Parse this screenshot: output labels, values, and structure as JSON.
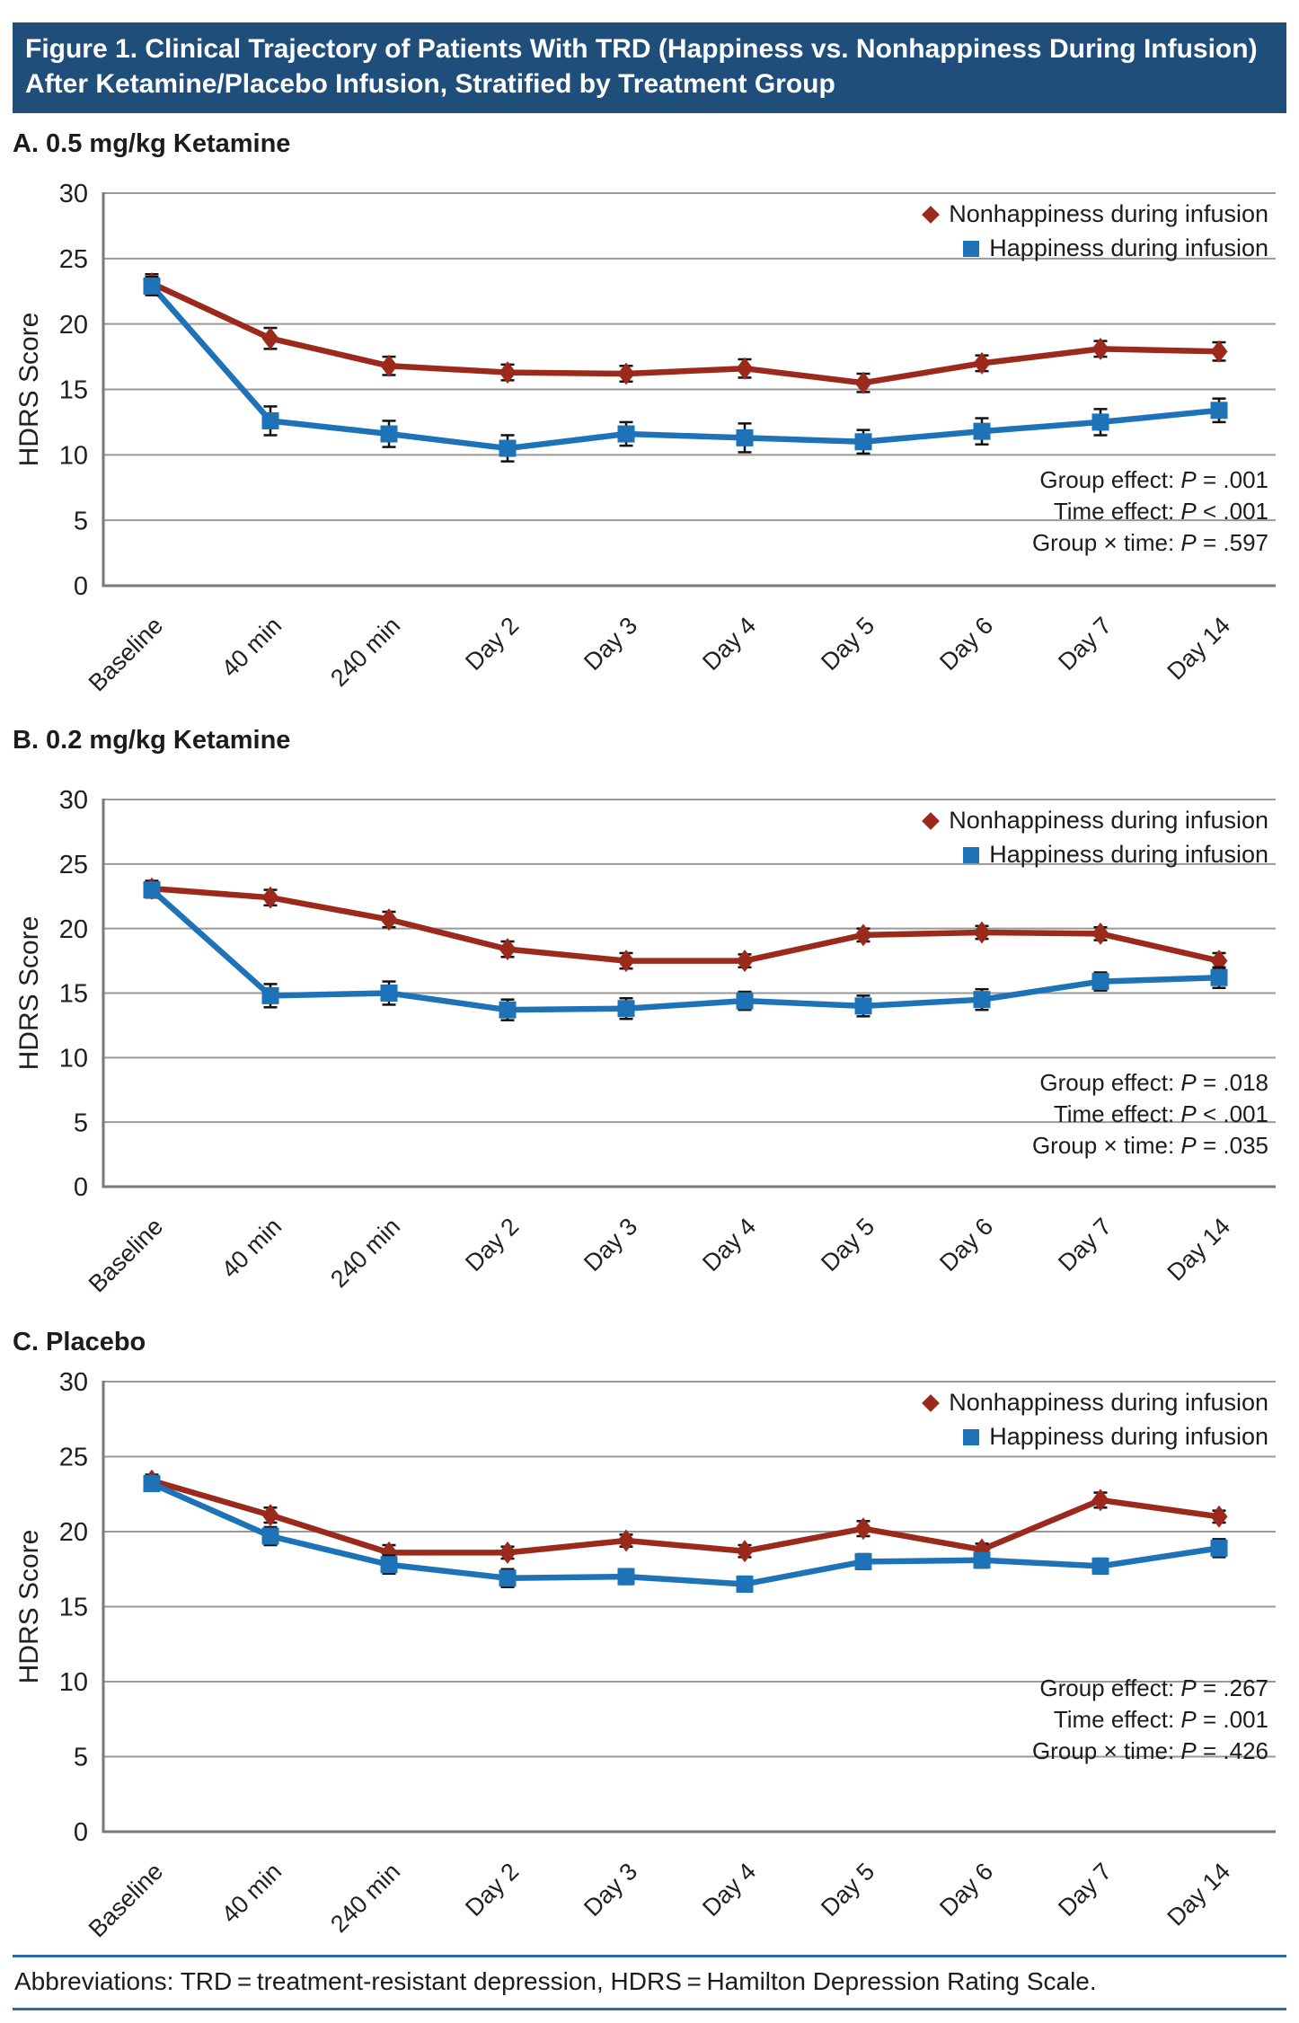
{
  "banner": {
    "title": "Figure 1. Clinical Trajectory of Patients With TRD (Happiness vs. Nonhappiness During Infusion) After Ketamine/Placebo Infusion, Stratified by Treatment Group"
  },
  "footer": {
    "text": "Abbreviations: TRD = treatment-resistant depression, HDRS = Hamilton Depression Rating Scale."
  },
  "colors": {
    "banner_bg": "#1e4e79",
    "nonhappiness": "#9c2a1c",
    "happiness": "#1d72b8",
    "gridline": "#999999",
    "axis": "#7a7a7a",
    "error_bar": "#111111",
    "text": "#231f20",
    "footer_rule": "#2d6ca2"
  },
  "chart_data": [
    {
      "type": "line",
      "panel": "A",
      "title": "A. 0.5 mg/kg Ketamine",
      "ylabel": "HDRS Score",
      "ylim": [
        0,
        30
      ],
      "yticks": [
        0,
        5,
        10,
        15,
        20,
        25,
        30
      ],
      "grid": true,
      "legend_position": "top-right",
      "categories": [
        "Baseline",
        "40 min",
        "240 min",
        "Day 2",
        "Day 3",
        "Day 4",
        "Day 5",
        "Day 6",
        "Day 7",
        "Day 14"
      ],
      "series": [
        {
          "name": "Nonhappiness during infusion",
          "marker": "diamond",
          "color": "#9c2a1c",
          "values": [
            23.1,
            18.9,
            16.8,
            16.3,
            16.2,
            16.6,
            15.5,
            17.0,
            18.1,
            17.9
          ],
          "errors": [
            0.7,
            0.8,
            0.7,
            0.6,
            0.6,
            0.7,
            0.7,
            0.6,
            0.6,
            0.7
          ]
        },
        {
          "name": "Happiness during infusion",
          "marker": "square",
          "color": "#1d72b8",
          "values": [
            22.9,
            12.6,
            11.6,
            10.5,
            11.6,
            11.3,
            11.0,
            11.8,
            12.5,
            13.4
          ],
          "errors": [
            0.7,
            1.1,
            1.0,
            1.0,
            0.9,
            1.1,
            0.9,
            1.0,
            1.0,
            0.9
          ]
        }
      ],
      "stats": [
        {
          "prefix": "Group effect: ",
          "p": "P",
          "suffix": " = .001"
        },
        {
          "prefix": "Time effect: ",
          "p": "P",
          "suffix": " < .001"
        },
        {
          "prefix": "Group × time: ",
          "p": "P",
          "suffix": " = .597"
        }
      ]
    },
    {
      "type": "line",
      "panel": "B",
      "title": "B. 0.2 mg/kg Ketamine",
      "ylabel": "HDRS Score",
      "ylim": [
        0,
        30
      ],
      "yticks": [
        0,
        5,
        10,
        15,
        20,
        25,
        30
      ],
      "grid": true,
      "legend_position": "top-right",
      "categories": [
        "Baseline",
        "40 min",
        "240 min",
        "Day 2",
        "Day 3",
        "Day 4",
        "Day 5",
        "Day 6",
        "Day 7",
        "Day 14"
      ],
      "series": [
        {
          "name": "Nonhappiness during infusion",
          "marker": "diamond",
          "color": "#9c2a1c",
          "values": [
            23.1,
            22.4,
            20.7,
            18.4,
            17.5,
            17.5,
            19.5,
            19.7,
            19.6,
            17.5
          ],
          "errors": [
            0.6,
            0.6,
            0.6,
            0.6,
            0.6,
            0.5,
            0.5,
            0.5,
            0.5,
            0.6
          ]
        },
        {
          "name": "Happiness during infusion",
          "marker": "square",
          "color": "#1d72b8",
          "values": [
            23.0,
            14.8,
            15.0,
            13.7,
            13.8,
            14.4,
            14.0,
            14.5,
            15.9,
            16.2
          ],
          "errors": [
            0.6,
            0.9,
            0.9,
            0.8,
            0.8,
            0.7,
            0.8,
            0.8,
            0.7,
            0.8
          ]
        }
      ],
      "stats": [
        {
          "prefix": "Group effect: ",
          "p": "P",
          "suffix": " = .018"
        },
        {
          "prefix": "Time effect: ",
          "p": "P",
          "suffix": " < .001"
        },
        {
          "prefix": "Group × time: ",
          "p": "P",
          "suffix": " = .035"
        }
      ]
    },
    {
      "type": "line",
      "panel": "C",
      "title": "C. Placebo",
      "ylabel": "HDRS Score",
      "ylim": [
        0,
        30
      ],
      "yticks": [
        0,
        5,
        10,
        15,
        20,
        25,
        30
      ],
      "grid": true,
      "legend_position": "top-right",
      "categories": [
        "Baseline",
        "40 min",
        "240 min",
        "Day 2",
        "Day 3",
        "Day 4",
        "Day 5",
        "Day 6",
        "Day 7",
        "Day 14"
      ],
      "series": [
        {
          "name": "Nonhappiness during infusion",
          "marker": "diamond",
          "color": "#9c2a1c",
          "values": [
            23.4,
            21.1,
            18.6,
            18.6,
            19.4,
            18.7,
            20.2,
            18.8,
            22.1,
            21.0
          ],
          "errors": [
            0.4,
            0.5,
            0.5,
            0.4,
            0.4,
            0.4,
            0.5,
            0.4,
            0.5,
            0.4
          ]
        },
        {
          "name": "Happiness during infusion",
          "marker": "square",
          "color": "#1d72b8",
          "values": [
            23.2,
            19.7,
            17.8,
            16.9,
            17.0,
            16.5,
            18.0,
            18.1,
            17.7,
            18.9
          ],
          "errors": [
            0.4,
            0.6,
            0.6,
            0.6,
            0.5,
            0.5,
            0.5,
            0.5,
            0.5,
            0.6
          ]
        }
      ],
      "stats": [
        {
          "prefix": "Group effect: ",
          "p": "P",
          "suffix": " = .267"
        },
        {
          "prefix": "Time effect: ",
          "p": "P",
          "suffix": " = .001"
        },
        {
          "prefix": "Group × time: ",
          "p": "P",
          "suffix": " = .426"
        }
      ]
    }
  ]
}
